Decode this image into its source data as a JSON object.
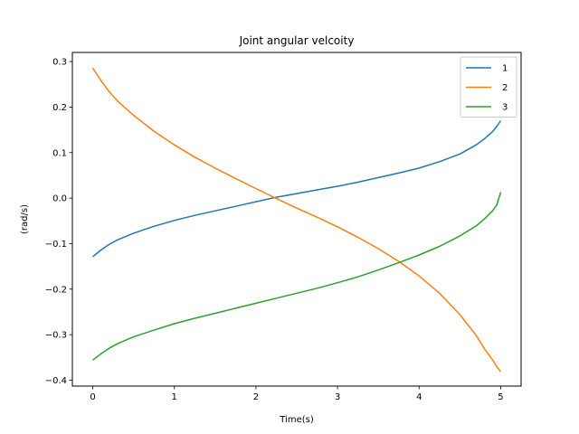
{
  "chart_data": {
    "type": "line",
    "title": "Joint angular velcoity",
    "xlabel": "Time(s)",
    "ylabel": "(rad/s)",
    "xlim": [
      -0.25,
      5.25
    ],
    "ylim": [
      -0.413,
      0.32
    ],
    "xticks": [
      0,
      1,
      2,
      3,
      4,
      5
    ],
    "xtick_labels": [
      "0",
      "1",
      "2",
      "3",
      "4",
      "5"
    ],
    "yticks": [
      -0.4,
      -0.3,
      -0.2,
      -0.1,
      0.0,
      0.1,
      0.2,
      0.3
    ],
    "ytick_labels": [
      "−0.4",
      "−0.3",
      "−0.2",
      "−0.1",
      "0.0",
      "0.1",
      "0.2",
      "0.3"
    ],
    "grid": false,
    "legend_position": "top-right",
    "x": [
      0,
      0.1,
      0.2,
      0.3,
      0.5,
      0.75,
      1.0,
      1.25,
      1.5,
      1.75,
      2.0,
      2.25,
      2.5,
      2.75,
      3.0,
      3.25,
      3.5,
      3.75,
      4.0,
      4.25,
      4.5,
      4.7,
      4.8,
      4.9,
      4.95,
      5.0
    ],
    "series": [
      {
        "name": "1",
        "color": "#1f77b4",
        "values": [
          -0.129,
          -0.114,
          -0.102,
          -0.092,
          -0.077,
          -0.062,
          -0.049,
          -0.038,
          -0.028,
          -0.018,
          -0.008,
          0.002,
          0.01,
          0.018,
          0.026,
          0.035,
          0.045,
          0.055,
          0.066,
          0.08,
          0.097,
          0.117,
          0.13,
          0.146,
          0.157,
          0.17
        ]
      },
      {
        "name": "2",
        "color": "#ff7f0e",
        "values": [
          0.286,
          0.258,
          0.234,
          0.214,
          0.182,
          0.147,
          0.117,
          0.09,
          0.066,
          0.043,
          0.021,
          -0.001,
          -0.022,
          -0.042,
          -0.063,
          -0.086,
          -0.111,
          -0.139,
          -0.171,
          -0.209,
          -0.256,
          -0.302,
          -0.331,
          -0.355,
          -0.37,
          -0.381
        ]
      },
      {
        "name": "3",
        "color": "#2ca02c",
        "values": [
          -0.356,
          -0.342,
          -0.33,
          -0.32,
          -0.305,
          -0.29,
          -0.276,
          -0.264,
          -0.253,
          -0.242,
          -0.231,
          -0.22,
          -0.209,
          -0.198,
          -0.186,
          -0.173,
          -0.158,
          -0.142,
          -0.125,
          -0.106,
          -0.083,
          -0.061,
          -0.046,
          -0.028,
          -0.016,
          0.013
        ]
      }
    ]
  }
}
